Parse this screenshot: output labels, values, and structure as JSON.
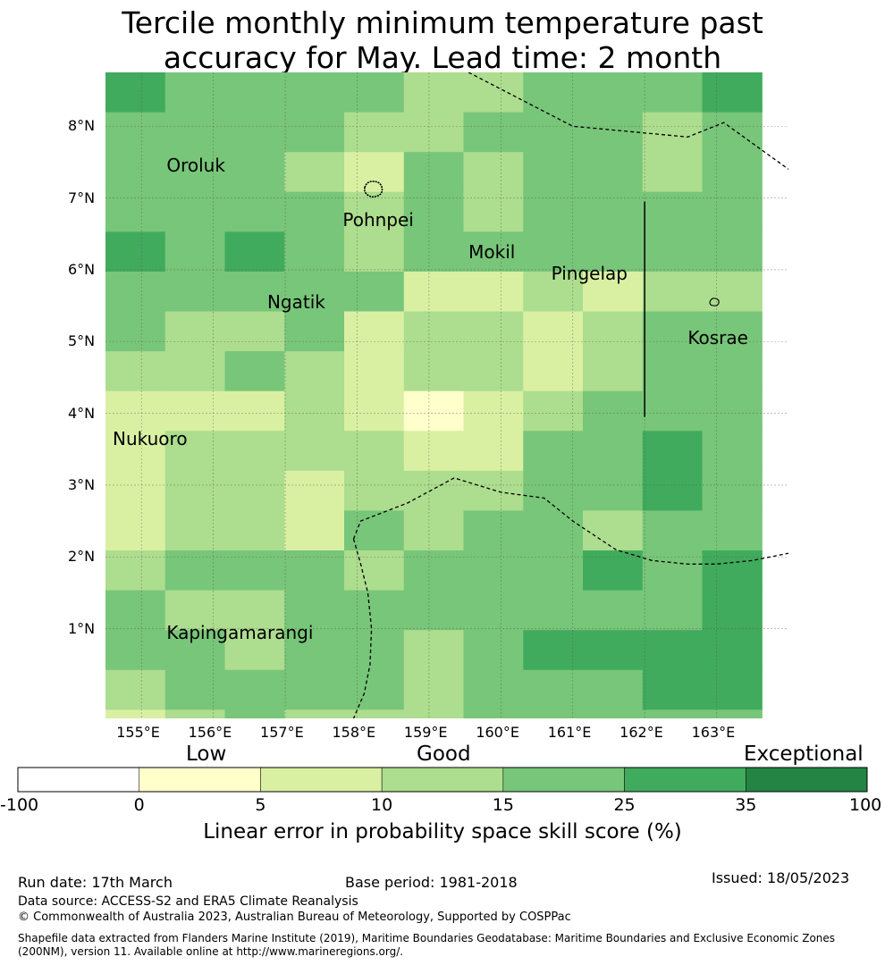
{
  "title_line1": "Tercile monthly minimum temperature past",
  "title_line2": "accuracy for May. Lead time: 2 month",
  "map": {
    "lon_range": [
      154.5,
      164.0
    ],
    "lat_range": [
      -0.25,
      8.75
    ],
    "cell_lon_origin": 154.5,
    "cell_lon_step": 0.83,
    "cell_lat_top": 8.75,
    "cell_lat_step": 0.555,
    "lat_ticks": [
      "8°N",
      "7°N",
      "6°N",
      "5°N",
      "4°N",
      "3°N",
      "2°N",
      "1°N"
    ],
    "lat_tick_values": [
      8,
      7,
      6,
      5,
      4,
      3,
      2,
      1
    ],
    "lon_ticks": [
      "155°E",
      "156°E",
      "157°E",
      "158°E",
      "159°E",
      "160°E",
      "161°E",
      "162°E",
      "163°E"
    ],
    "lon_tick_values": [
      155,
      156,
      157,
      158,
      159,
      160,
      161,
      162,
      163
    ],
    "grid_classes": [
      [
        4,
        3,
        3,
        3,
        3,
        2,
        2,
        3,
        3,
        3,
        4
      ],
      [
        3,
        3,
        3,
        3,
        2,
        2,
        3,
        3,
        3,
        2,
        3
      ],
      [
        3,
        3,
        3,
        2,
        1,
        3,
        2,
        3,
        3,
        2,
        3
      ],
      [
        3,
        3,
        3,
        3,
        2,
        3,
        2,
        3,
        3,
        3,
        3
      ],
      [
        4,
        3,
        4,
        3,
        2,
        3,
        3,
        3,
        3,
        3,
        3
      ],
      [
        3,
        3,
        3,
        3,
        3,
        1,
        1,
        2,
        1,
        2,
        2
      ],
      [
        3,
        2,
        2,
        3,
        1,
        2,
        2,
        1,
        2,
        3,
        3
      ],
      [
        2,
        2,
        3,
        2,
        1,
        2,
        2,
        1,
        2,
        3,
        3
      ],
      [
        1,
        1,
        1,
        2,
        1,
        0,
        1,
        2,
        3,
        3,
        3
      ],
      [
        1,
        2,
        2,
        2,
        2,
        1,
        1,
        3,
        3,
        4,
        3
      ],
      [
        1,
        2,
        2,
        1,
        2,
        2,
        2,
        3,
        3,
        4,
        3
      ],
      [
        1,
        2,
        2,
        1,
        3,
        2,
        3,
        3,
        2,
        3,
        3
      ],
      [
        2,
        3,
        3,
        3,
        2,
        3,
        3,
        3,
        4,
        3,
        4
      ],
      [
        3,
        2,
        2,
        3,
        3,
        3,
        3,
        3,
        3,
        3,
        4
      ],
      [
        3,
        3,
        2,
        3,
        3,
        2,
        3,
        4,
        4,
        4,
        4
      ],
      [
        2,
        3,
        3,
        3,
        3,
        2,
        3,
        3,
        3,
        4,
        4
      ],
      [
        1,
        2,
        3,
        2,
        2,
        2,
        3,
        3,
        3,
        3,
        3
      ]
    ],
    "places": [
      {
        "name": "Oroluk",
        "lon": 155.35,
        "lat": 7.45
      },
      {
        "name": "Pohnpei",
        "lon": 157.8,
        "lat": 6.7
      },
      {
        "name": "Mokil",
        "lon": 159.55,
        "lat": 6.25
      },
      {
        "name": "Pingelap",
        "lon": 160.7,
        "lat": 5.95
      },
      {
        "name": "Ngatik",
        "lon": 156.75,
        "lat": 5.55
      },
      {
        "name": "Kosrae",
        "lon": 162.6,
        "lat": 5.05
      },
      {
        "name": "Nukuoro",
        "lon": 154.6,
        "lat": 3.65
      },
      {
        "name": "Kapingamarangi",
        "lon": 155.35,
        "lat": 0.95
      }
    ],
    "eez_boundaries": [
      [
        [
          159.55,
          8.75
        ],
        [
          161.0,
          8.0
        ],
        [
          162.6,
          7.85
        ],
        [
          163.1,
          8.05
        ],
        [
          164.0,
          7.4
        ]
      ],
      [
        [
          157.95,
          2.25
        ],
        [
          158.05,
          2.5
        ],
        [
          158.7,
          2.75
        ],
        [
          159.35,
          3.1
        ],
        [
          160.0,
          2.9
        ],
        [
          160.6,
          2.82
        ],
        [
          161.0,
          2.5
        ],
        [
          161.6,
          2.1
        ],
        [
          162.1,
          1.95
        ],
        [
          162.6,
          1.9
        ],
        [
          163.0,
          1.9
        ],
        [
          163.5,
          1.95
        ],
        [
          164.0,
          2.05
        ]
      ],
      [
        [
          157.95,
          2.25
        ],
        [
          158.05,
          1.9
        ],
        [
          158.15,
          1.5
        ],
        [
          158.2,
          1.0
        ],
        [
          158.18,
          0.5
        ],
        [
          158.1,
          0.1
        ],
        [
          157.95,
          -0.25
        ]
      ]
    ],
    "date_line_segment": [
      [
        162.0,
        6.95
      ],
      [
        162.0,
        3.95
      ]
    ]
  },
  "colorbar": {
    "words": [
      "Low",
      "Good",
      "Exceptional"
    ],
    "ticks": [
      "-100",
      "0",
      "5",
      "10",
      "15",
      "25",
      "35",
      "100"
    ],
    "colors": [
      "#ffffff",
      "#ffffcc",
      "#d9f0a3",
      "#addd8e",
      "#78c679",
      "#41ab5d",
      "#238443"
    ],
    "label": "Linear error in probability space skill score (%)"
  },
  "footer": {
    "run_date": "Run date: 17th March",
    "base_period": "Base period: 1981-2018",
    "issued": "Issued: 18/05/2023",
    "data_source": "Data source: ACCESS-S2 and ERA5 Climate Reanalysis",
    "copyright": "© Commonwealth of Australia 2023, Australian Bureau of Meteorology, Supported by COSPPac",
    "shapefile_line1": "Shapefile data extracted from Flanders Marine Institute (2019), Maritime Boundaries Geodatabase: Maritime Boundaries and Exclusive Economic Zones",
    "shapefile_line2": "(200NM), version 11. Available online at http://www.marineregions.org/."
  }
}
